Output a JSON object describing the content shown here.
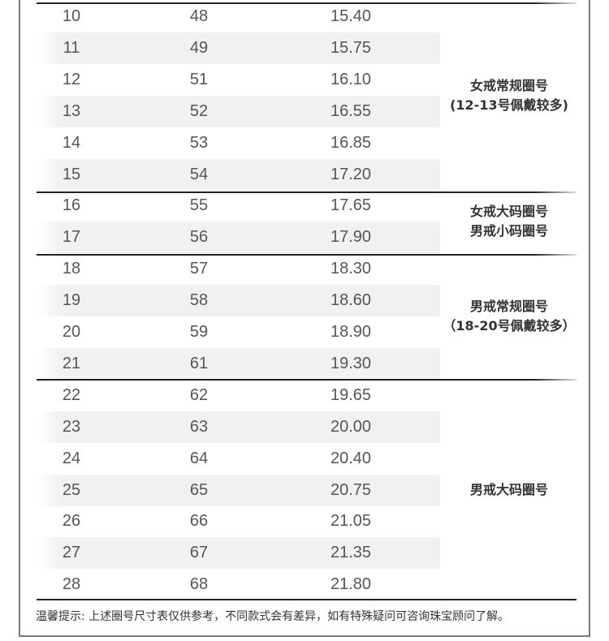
{
  "rows": [
    {
      "size": "10",
      "circ": "48",
      "diam": "15.40"
    },
    {
      "size": "11",
      "circ": "49",
      "diam": "15.75"
    },
    {
      "size": "12",
      "circ": "51",
      "diam": "16.10"
    },
    {
      "size": "13",
      "circ": "52",
      "diam": "16.55"
    },
    {
      "size": "14",
      "circ": "53",
      "diam": "16.85"
    },
    {
      "size": "15",
      "circ": "54",
      "diam": "17.20"
    },
    {
      "size": "16",
      "circ": "55",
      "diam": "17.65"
    },
    {
      "size": "17",
      "circ": "56",
      "diam": "17.90"
    },
    {
      "size": "18",
      "circ": "57",
      "diam": "18.30"
    },
    {
      "size": "19",
      "circ": "58",
      "diam": "18.60"
    },
    {
      "size": "20",
      "circ": "59",
      "diam": "18.90"
    },
    {
      "size": "21",
      "circ": "61",
      "diam": "19.30"
    },
    {
      "size": "22",
      "circ": "62",
      "diam": "19.65"
    },
    {
      "size": "23",
      "circ": "63",
      "diam": "20.00"
    },
    {
      "size": "24",
      "circ": "64",
      "diam": "20.40"
    },
    {
      "size": "25",
      "circ": "65",
      "diam": "20.75"
    },
    {
      "size": "26",
      "circ": "66",
      "diam": "21.05"
    },
    {
      "size": "27",
      "circ": "67",
      "diam": "21.35"
    },
    {
      "size": "28",
      "circ": "68",
      "diam": "21.80"
    }
  ],
  "groups": [
    {
      "lines": [
        "女戒常规圈号",
        "(12-13号佩戴较多)"
      ]
    },
    {
      "lines": [
        "女戒大码圈号",
        "男戒小码圈号"
      ]
    },
    {
      "lines": [
        "男戒常规圈号",
        "（18-20号佩戴较多）"
      ]
    },
    {
      "lines": [
        "男戒大码圈号"
      ]
    }
  ],
  "note": "温馨提示: 上述圈号尺寸表仅供参考，不同款式会有差异，如有特殊疑问可咨询珠宝顾问了解。"
}
